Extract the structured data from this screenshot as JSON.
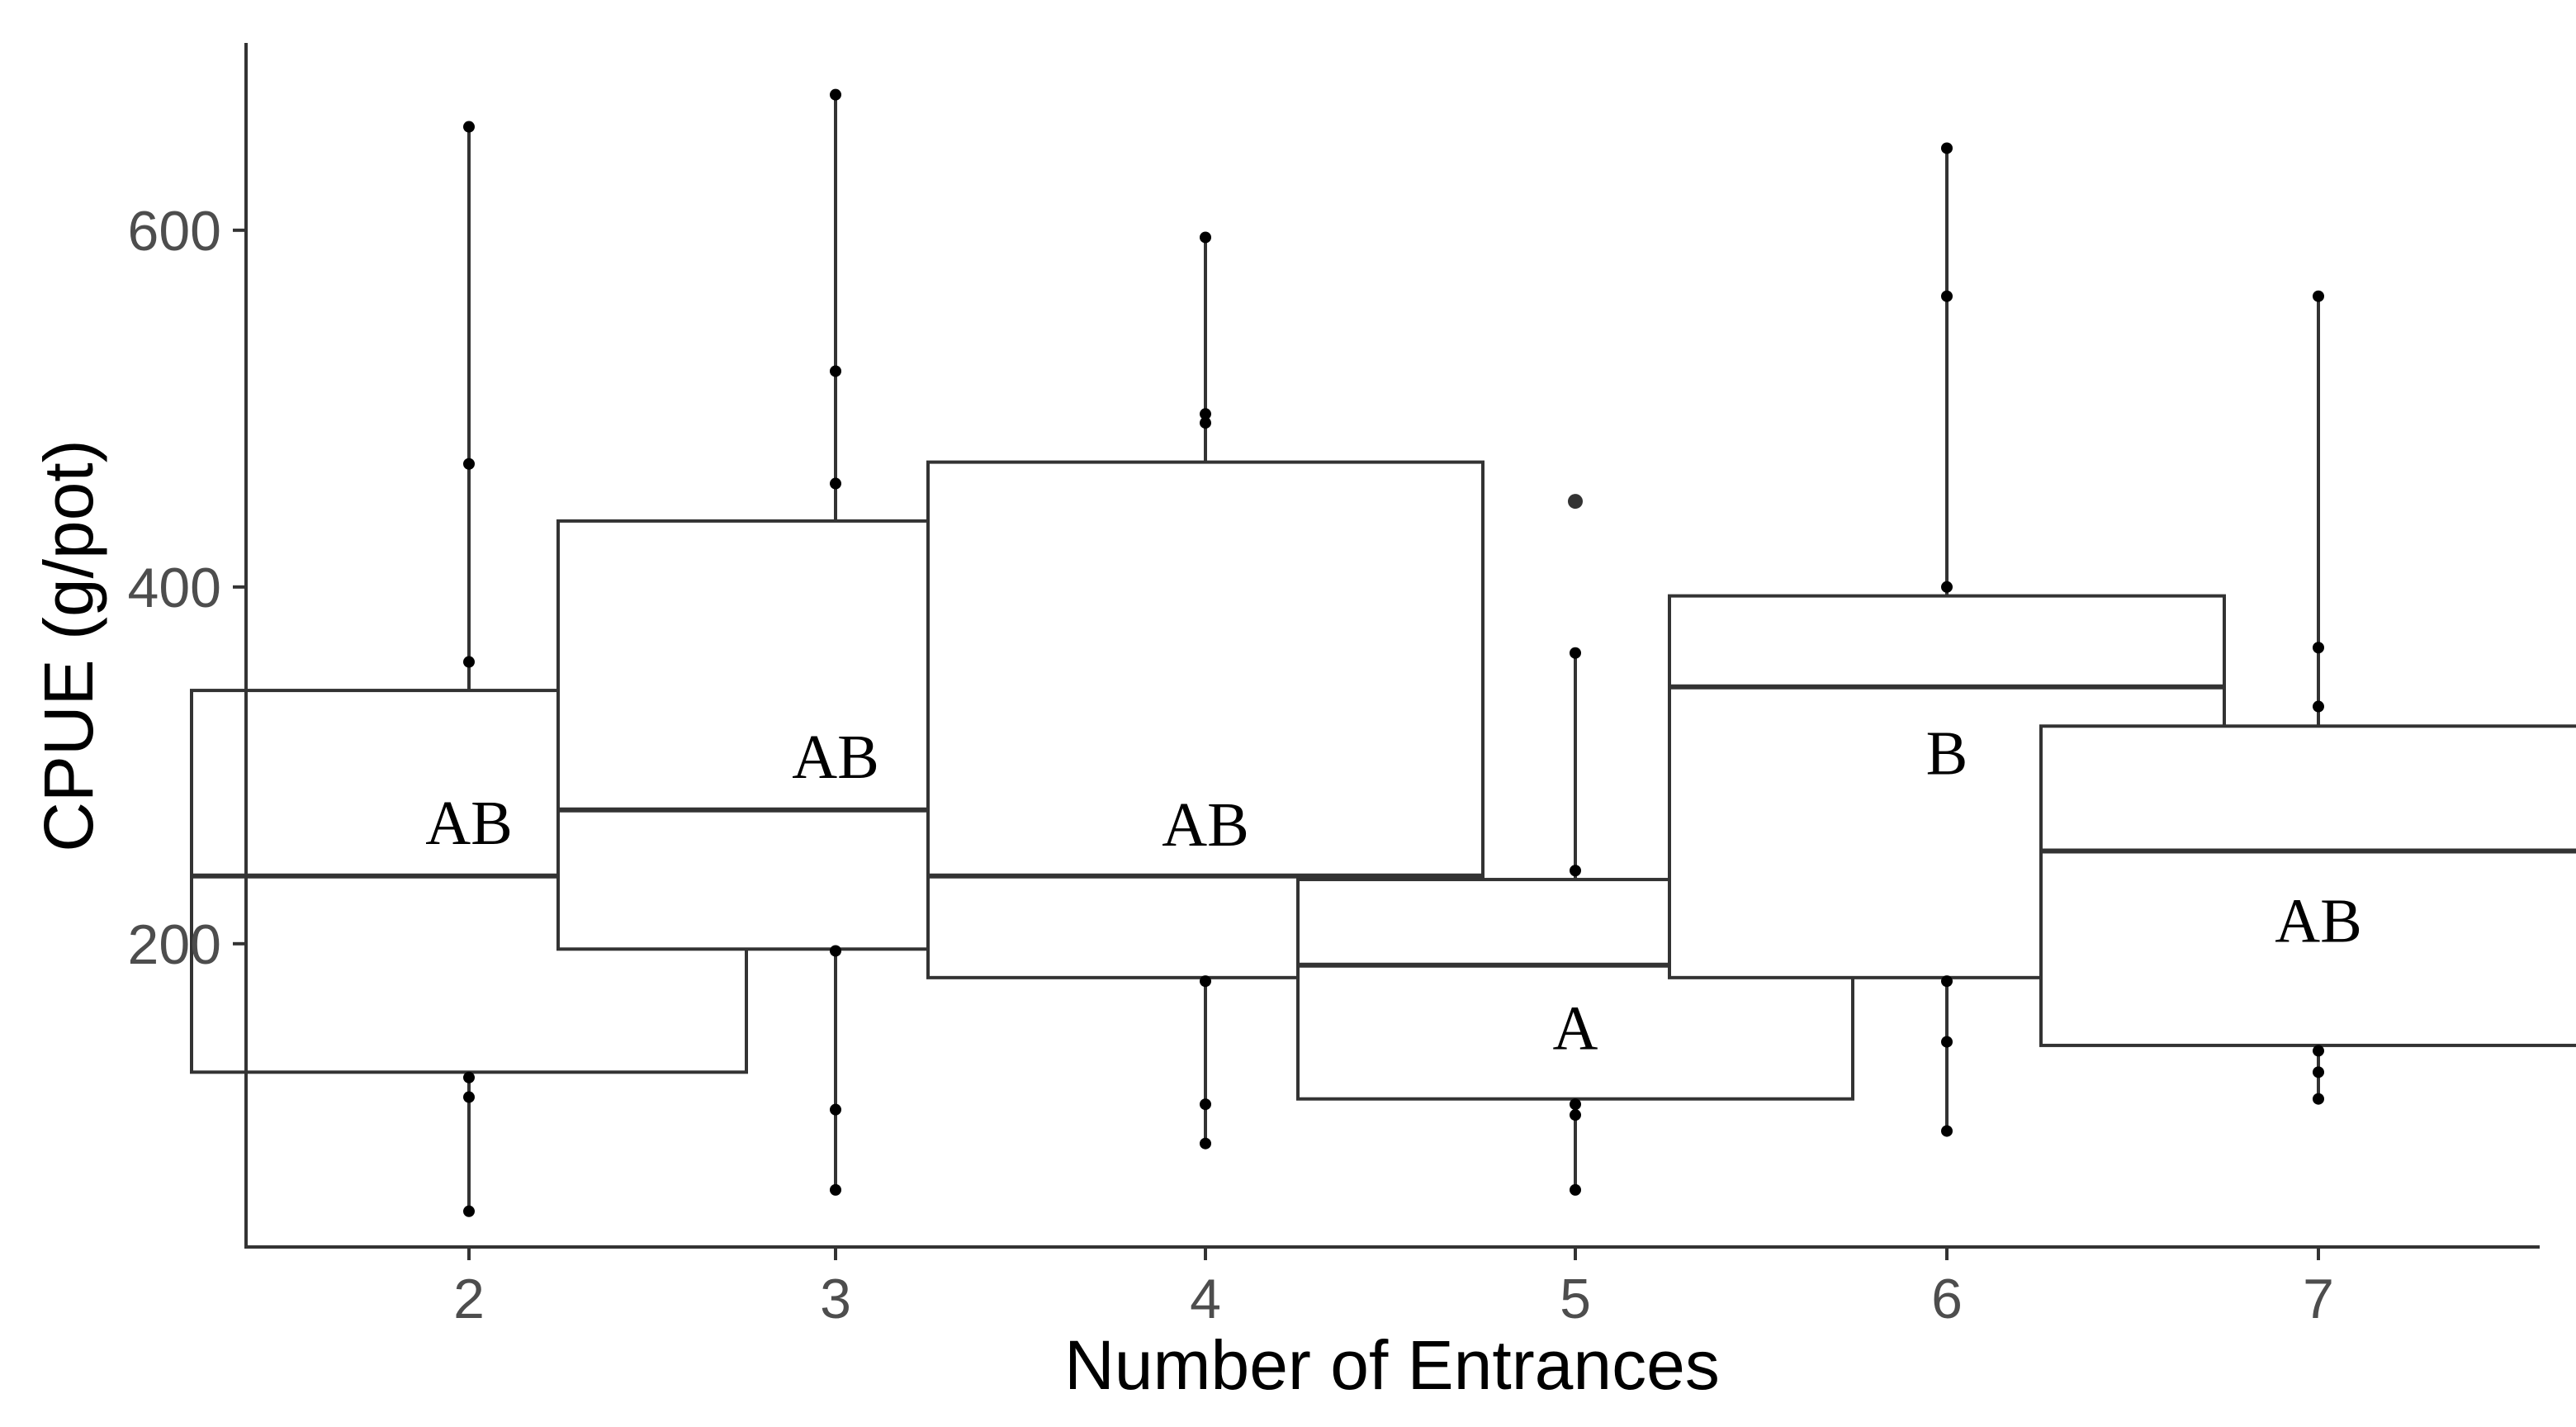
{
  "chart_data": {
    "type": "box",
    "xlabel": "Number of Entrances",
    "ylabel": "CPUE (g/pot)",
    "ylim": [
      30,
      705
    ],
    "yticks": [
      200,
      400,
      600
    ],
    "grid": false,
    "categories": [
      "2",
      "3",
      "4",
      "5",
      "6",
      "7"
    ],
    "boxes": [
      {
        "category": "2",
        "q1": 128,
        "median": 238,
        "q3": 342,
        "whisker_low": 50,
        "whisker_high": 658,
        "letter": "AB",
        "letter_y": 268,
        "points": [
          658,
          469,
          358,
          125,
          114,
          50
        ],
        "outliers": []
      },
      {
        "category": "3",
        "q1": 197,
        "median": 275,
        "q3": 437,
        "whisker_low": 62,
        "whisker_high": 676,
        "letter": "AB",
        "letter_y": 305,
        "points": [
          676,
          521,
          458,
          196,
          107,
          62
        ],
        "outliers": []
      },
      {
        "category": "4",
        "q1": 181,
        "median": 238,
        "q3": 470,
        "whisker_low": 88,
        "whisker_high": 596,
        "letter": "AB",
        "letter_y": 267,
        "points": [
          596,
          497,
          492,
          179,
          110,
          88
        ],
        "outliers": []
      },
      {
        "category": "5",
        "q1": 113,
        "median": 188,
        "q3": 236,
        "whisker_low": 62,
        "whisker_high": 363,
        "letter": "A",
        "letter_y": 153,
        "points": [
          363,
          241,
          110,
          104,
          62
        ],
        "outliers": [
          448
        ]
      },
      {
        "category": "6",
        "q1": 181,
        "median": 344,
        "q3": 395,
        "whisker_low": 95,
        "whisker_high": 646,
        "letter": "B",
        "letter_y": 307,
        "points": [
          646,
          563,
          400,
          179,
          145,
          95
        ],
        "outliers": []
      },
      {
        "category": "7",
        "q1": 143,
        "median": 252,
        "q3": 322,
        "whisker_low": 113,
        "whisker_high": 563,
        "letter": "AB",
        "letter_y": 213,
        "points": [
          563,
          366,
          333,
          140,
          128,
          113
        ],
        "outliers": []
      }
    ]
  },
  "colors": {
    "box_fill": "#ffffff",
    "box_stroke": "#333333",
    "axis": "#333333",
    "tick_text": "#4d4d4d",
    "points": "#000000"
  }
}
